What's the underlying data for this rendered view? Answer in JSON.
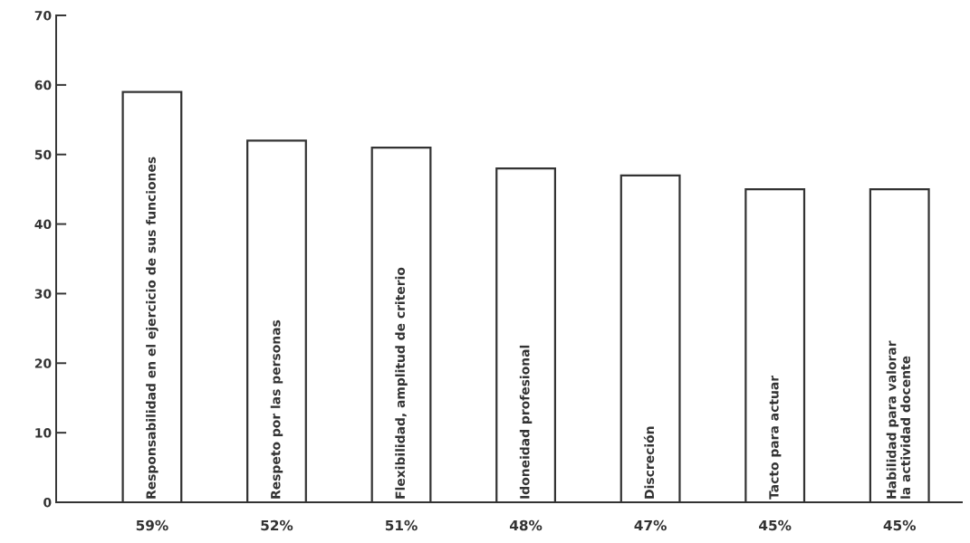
{
  "chart_data": {
    "type": "bar",
    "categories": [
      "Responsabilidad en el ejercicio de sus funciones",
      "Respeto por las personas",
      "Flexibilidad, amplitud de criterio",
      "Idoneidad profesional",
      "Discreción",
      "Tacto para actuar",
      "Habilidad para valorar la actividad docente"
    ],
    "values": [
      59,
      52,
      51,
      48,
      47,
      45,
      45
    ],
    "value_labels": [
      "59%",
      "52%",
      "51%",
      "48%",
      "47%",
      "45%",
      "45%"
    ],
    "color": "#ffffff",
    "ylim": [
      0,
      70
    ],
    "yticks": [
      0,
      10,
      20,
      30,
      40,
      50,
      60,
      70
    ],
    "grid": false
  }
}
